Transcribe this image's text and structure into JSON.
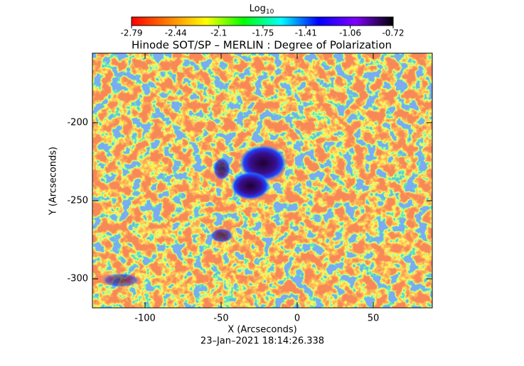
{
  "chart_data": {
    "type": "image",
    "title": "Hinode SOT/SP – MERLIN : Degree of Polarization",
    "xlabel": "X (Arcseconds)",
    "ylabel": "Y (Arcseconds)",
    "footer": "23–Jan–2021 18:14:26.338",
    "xlim": [
      -134.6,
      88.8
    ],
    "ylim": [
      -318.6,
      -155.5
    ],
    "xticks": [
      -100,
      -50,
      0,
      50
    ],
    "yticks": [
      -200,
      -250,
      -300
    ],
    "colorbar": {
      "label": "Log",
      "label_sub": "10",
      "ticks": [
        -2.79,
        -2.44,
        -2.1,
        -1.75,
        -1.41,
        -1.06,
        -0.72
      ],
      "colormap": [
        "#ff0000",
        "#ff8000",
        "#ffff00",
        "#00ff00",
        "#00ffff",
        "#0000ff",
        "#8000ff",
        "#000000"
      ]
    }
  }
}
